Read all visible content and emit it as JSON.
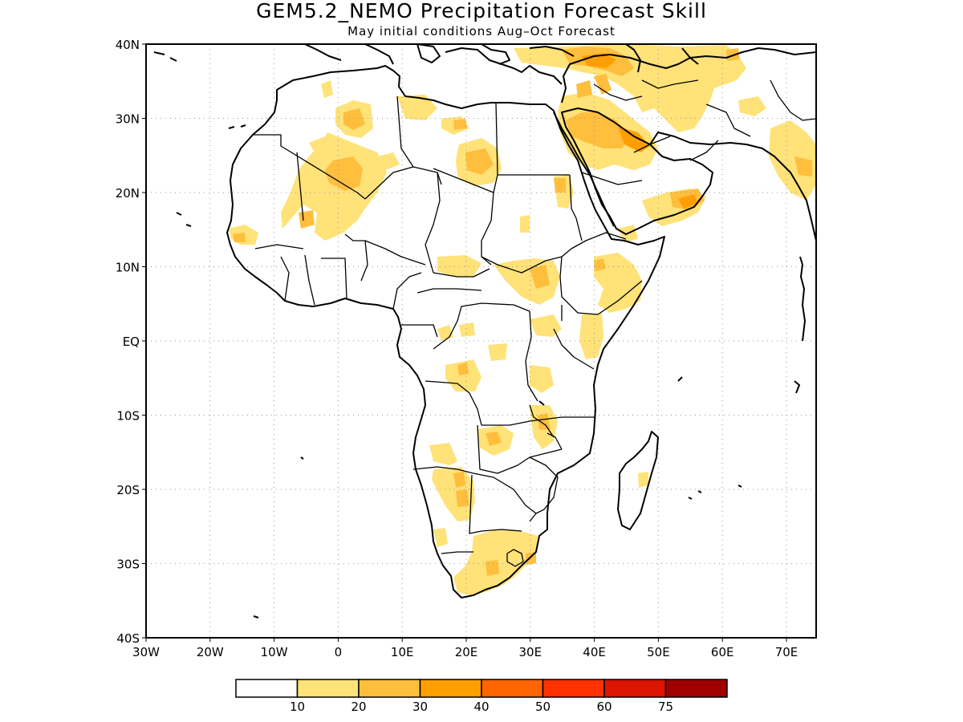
{
  "title": "GEM5.2_NEMO Precipitation Forecast Skill",
  "subtitle": "May initial conditions  Aug–Oct Forecast",
  "x_ticks": [
    "30W",
    "20W",
    "10W",
    "0",
    "10E",
    "20E",
    "30E",
    "40E",
    "50E",
    "60E",
    "70E"
  ],
  "y_ticks": [
    "40N",
    "30N",
    "20N",
    "10N",
    "EQ",
    "10S",
    "20S",
    "30S",
    "40S"
  ],
  "colorbar": {
    "colors": [
      "#ffffff",
      "#ffe278",
      "#ffbe3c",
      "#ff9e00",
      "#ff6400",
      "#ff3200",
      "#dc1400",
      "#a00000"
    ],
    "labels": [
      "10",
      "20",
      "30",
      "40",
      "50",
      "60",
      "75"
    ]
  }
}
